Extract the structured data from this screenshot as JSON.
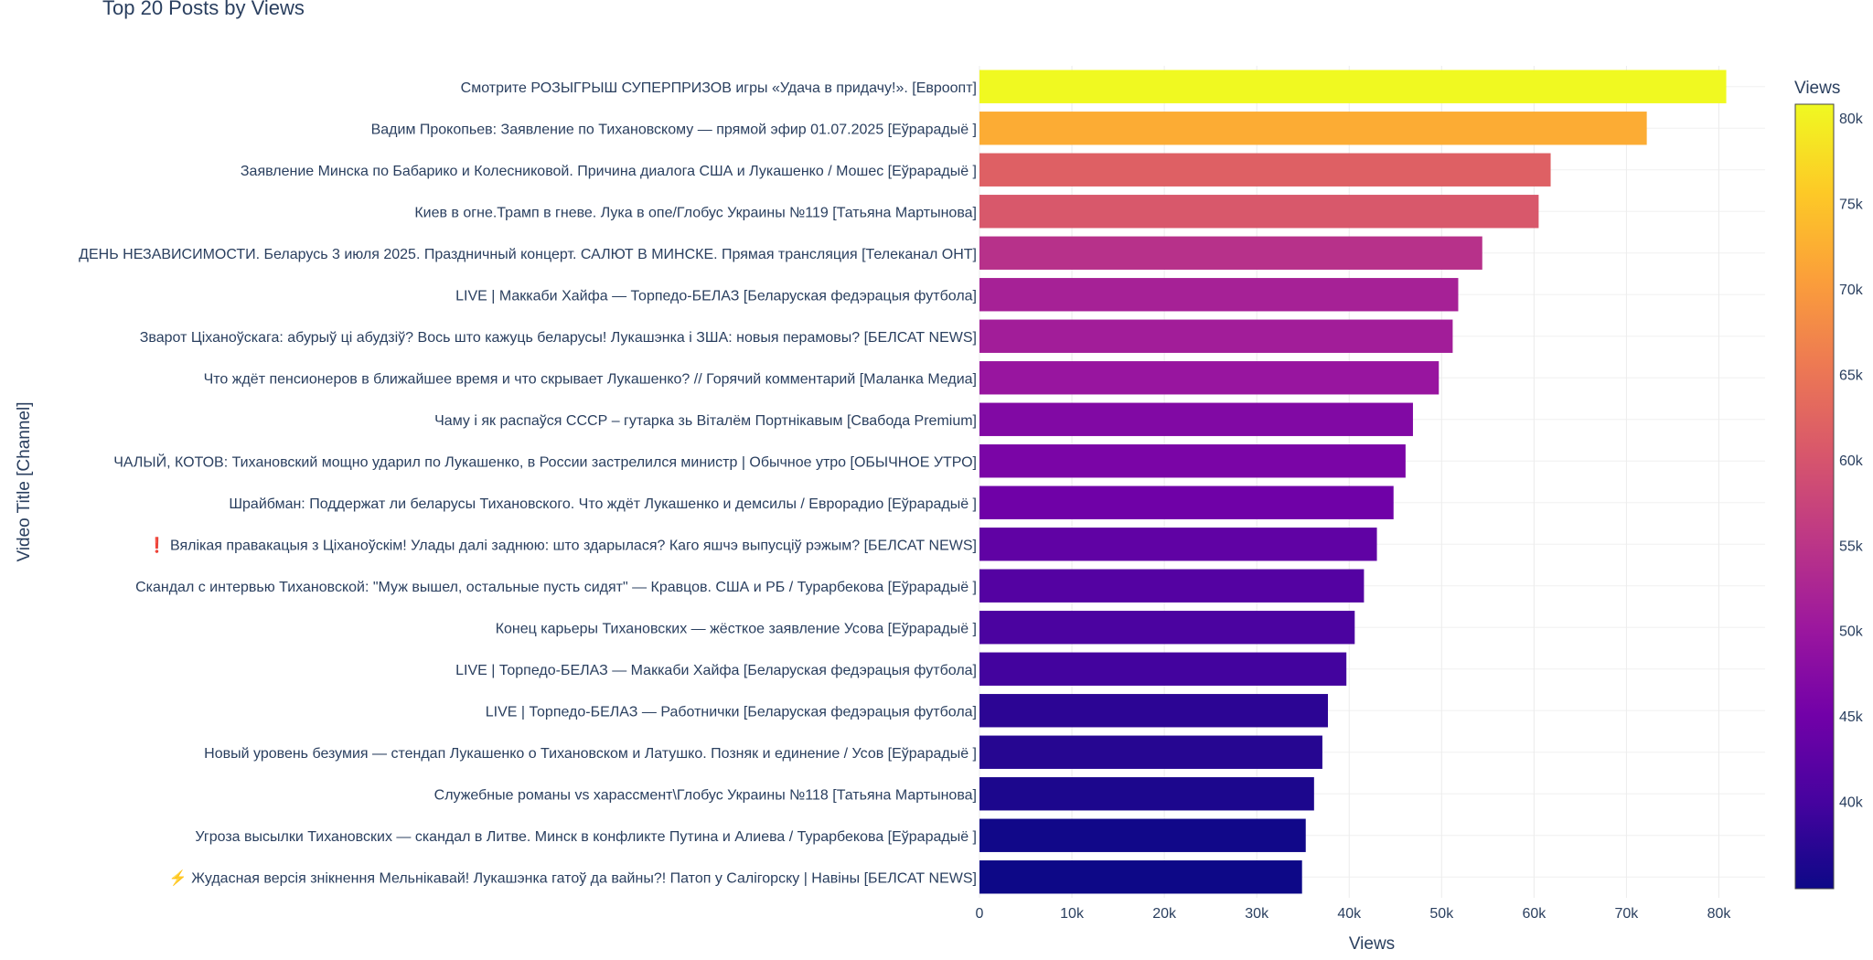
{
  "chart_data": {
    "type": "bar",
    "orientation": "horizontal",
    "title": "Top 20 Posts by Views",
    "xlabel": "Views",
    "ylabel": "Video Title [Channel]",
    "xlim": [
      0,
      85000
    ],
    "xticks": [
      0,
      10000,
      20000,
      30000,
      40000,
      50000,
      60000,
      70000,
      80000
    ],
    "xtick_labels": [
      "0",
      "10k",
      "20k",
      "30k",
      "40k",
      "50k",
      "60k",
      "70k",
      "80k"
    ],
    "grid": true,
    "colorscale": "Plasma",
    "colorbar": {
      "title": "Views",
      "range": [
        34900,
        80800
      ],
      "ticks": [
        40000,
        45000,
        50000,
        55000,
        60000,
        65000,
        70000,
        75000,
        80000
      ],
      "tick_labels": [
        "40k",
        "45k",
        "50k",
        "55k",
        "60k",
        "65k",
        "70k",
        "75k",
        "80k"
      ],
      "placement": "right"
    },
    "categories": [
      "Смотрите РОЗЫГРЫШ СУПЕРПРИЗОВ игры «Удача в придачу!». [Евроопт]",
      "Вадим Прокопьев: Заявление по Тихановскому — прямой эфир 01.07.2025 [Еўрарадыё ]",
      "Заявление Минска по Бабарико и Колесниковой. Причина диалога США и Лукашенко / Мошес [Еўрарадыё ]",
      "Киев в огне.Трамп в гневе. Лука в опе/Глобус Украины №119 [Татьяна Мартынова]",
      "ДЕНЬ НЕЗАВИСИМОСТИ. Беларусь 3 июля 2025. Праздничный концерт. САЛЮТ В МИНСКЕ. Прямая трансляция [Телеканал ОНТ]",
      "LIVE | Маккаби Хайфа — Торпедо-БЕЛАЗ [Беларуская федэрацыя футбола]",
      "Зварот Ціханоўскага: абурыў ці абудзіў? Вось што кажуць беларусы! Лукашэнка і ЗША: новыя перамовы? [БЕЛСАТ NEWS]",
      "Что ждёт пенсионеров в ближайшее время и что скрывает Лукашенко? // Горячий комментарий [Маланка Медиа]",
      "Чаму і як распаўся СССР – гутарка зь Віталём Портнікавым [Свабода Premium]",
      "ЧАЛЫЙ, КОТОВ: Тихановский мощно ударил по Лукашенко, в России застрелился министр | Обычное утро [ОБЫЧНОЕ УТРО]",
      "Шрайбман: Поддержат ли беларусы Тихановского. Что ждёт Лукашенко и демсилы / Еврорадио [Еўрарадыё ]",
      "❗ Вялікая правакацыя з Ціханоўскім! Улады далі заднюю: што здарылася? Каго яшчэ выпусціў рэжым? [БЕЛСАТ NEWS]",
      "Скандал с интервью Тихановской: \"Муж вышел, остальные пусть сидят\" — Кравцов. США и РБ / Турарбекова [Еўрарадыё ]",
      "Конец карьеры Тихановских — жёсткое заявление Усова [Еўрарадыё ]",
      "LIVE | Торпедо-БЕЛАЗ — Маккаби Хайфа [Беларуская федэрацыя футбола]",
      "LIVE | Торпедо-БЕЛАЗ — Работнички [Беларуская федэрацыя футбола]",
      "Новый уровень безумия — стендап Лукашенко о Тихановском и Латушко. Позняк и единение / Усов [Еўрарадыё ]",
      "Служебные романы vs харассмент\\Глобус Украины №118 [Татьяна Мартынова]",
      "Угроза высылки Тихановских — скандал в Литве. Минск в конфликте Путина и Алиева / Турарбекова [Еўрарадыё ]",
      "⚡ Жудасная версія знікнення Мельнікавай! Лукашэнка гатоў да вайны?!  Патоп у Салігорску | Навіны [БЕЛСАТ NEWS]"
    ],
    "values": [
      80800,
      72200,
      61800,
      60500,
      54400,
      51800,
      51200,
      49700,
      46900,
      46100,
      44800,
      43000,
      41600,
      40600,
      39700,
      37700,
      37100,
      36200,
      35300,
      34900
    ]
  }
}
